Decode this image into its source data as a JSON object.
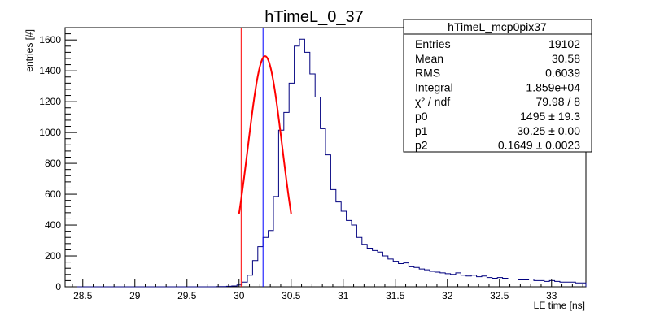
{
  "chart_data": {
    "type": "histogram",
    "title": "hTimeL_0_37",
    "xlabel": "LE time [ns]",
    "ylabel": "entries [#]",
    "xlim": [
      28.33,
      33.33
    ],
    "ylim": [
      0,
      1680
    ],
    "x_ticks": [
      28.5,
      29,
      29.5,
      30,
      30.5,
      31,
      31.5,
      32,
      32.5,
      33
    ],
    "y_ticks": [
      0,
      200,
      400,
      600,
      800,
      1000,
      1200,
      1400,
      1600
    ],
    "bin_width": 0.05,
    "x_start": 28.33,
    "values": [
      0,
      0,
      0,
      0,
      0,
      0,
      0,
      0,
      0,
      0,
      0,
      0,
      0,
      0,
      0,
      0,
      0,
      0,
      0,
      0,
      0,
      0,
      0,
      0,
      0,
      0,
      0,
      0,
      0,
      1,
      1,
      3,
      5,
      12,
      30,
      75,
      170,
      260,
      320,
      365,
      585,
      1015,
      1130,
      1320,
      1560,
      1605,
      1520,
      1380,
      1230,
      1025,
      855,
      630,
      550,
      490,
      430,
      400,
      320,
      275,
      250,
      235,
      225,
      200,
      180,
      165,
      150,
      155,
      130,
      125,
      115,
      110,
      100,
      95,
      90,
      85,
      80,
      90,
      75,
      70,
      75,
      65,
      70,
      60,
      55,
      60,
      55,
      50,
      50,
      45,
      45,
      50,
      40,
      40,
      35,
      40,
      35,
      30,
      30,
      30,
      25,
      25
    ],
    "fit": {
      "type": "gaus",
      "color": "#ff0000",
      "p0": 1495,
      "p1": 30.25,
      "p2": 0.1649,
      "range": [
        30.0,
        30.5
      ]
    },
    "markers": [
      {
        "x": 30.02,
        "color": "#ff0000"
      },
      {
        "x": 30.23,
        "color": "#0000ff"
      }
    ],
    "histogram_color": "#00007f",
    "stats_box": {
      "title": "hTimeL_mcp0pix37",
      "rows": [
        {
          "label": "Entries",
          "value": "19102"
        },
        {
          "label": "Mean",
          "value": "30.58"
        },
        {
          "label": "RMS",
          "value": "0.6039"
        },
        {
          "label": "Integral",
          "value": "1.859e+04"
        },
        {
          "label": "χ² / ndf",
          "value": "79.98 / 8"
        },
        {
          "label": "p0",
          "value": "1495 ± 19.3"
        },
        {
          "label": "p1",
          "value": "30.25 ± 0.00"
        },
        {
          "label": "p2",
          "value": "0.1649 ± 0.0023"
        }
      ]
    }
  }
}
